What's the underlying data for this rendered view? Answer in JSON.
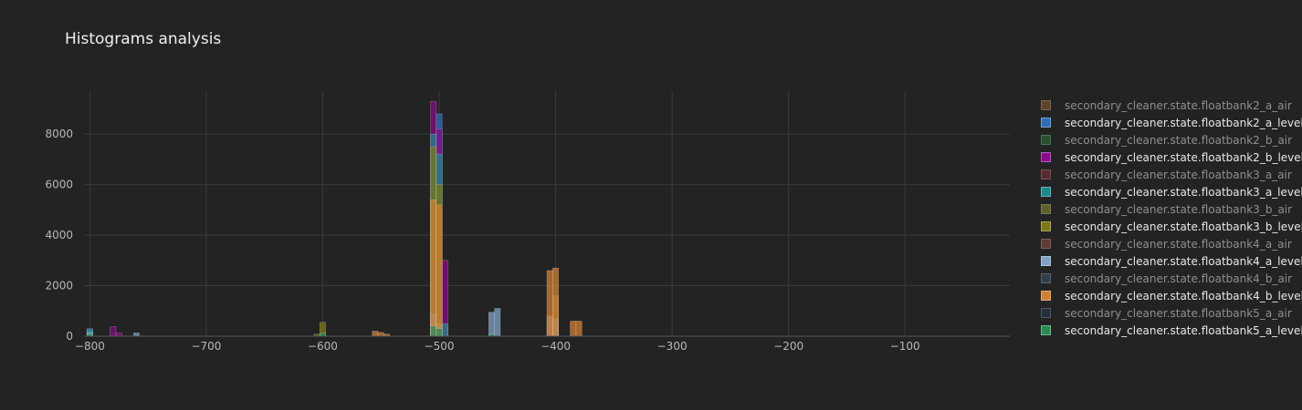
{
  "chart_data": {
    "type": "bar",
    "title": "Histograms analysis",
    "xlabel": "",
    "ylabel": "",
    "xlim": [
      -805,
      -10
    ],
    "ylim": [
      0,
      9700
    ],
    "grid": true,
    "barmode": "overlay",
    "legend_position": "right",
    "x_ticks": [
      -800,
      -700,
      -600,
      -500,
      -400,
      -300,
      -200,
      -100
    ],
    "x_tick_labels": [
      "−800",
      "−700",
      "−600",
      "−500",
      "−400",
      "−300",
      "−200",
      "−100"
    ],
    "y_ticks": [
      0,
      2000,
      4000,
      6000,
      8000
    ],
    "y_tick_labels": [
      "0",
      "2000",
      "4000",
      "6000",
      "8000"
    ],
    "bin_width": 5,
    "series": [
      {
        "name": "secondary_cleaner.state.floatbank2_a_air",
        "color": "#8a5a2e",
        "visible": false,
        "bins": [
          [
            -505,
            80
          ],
          [
            -500,
            60
          ],
          [
            -400,
            40
          ]
        ]
      },
      {
        "name": "secondary_cleaner.state.floatbank2_a_level",
        "color": "#2f6db3",
        "visible": true,
        "bins": [
          [
            -800,
            300
          ],
          [
            -500,
            8800
          ],
          [
            -495,
            400
          ],
          [
            -455,
            60
          ],
          [
            -405,
            40
          ]
        ]
      },
      {
        "name": "secondary_cleaner.state.floatbank2_b_air",
        "color": "#2a6e3a",
        "visible": false,
        "bins": [
          [
            -505,
            60
          ],
          [
            -500,
            40
          ]
        ]
      },
      {
        "name": "secondary_cleaner.state.floatbank2_b_level",
        "color": "#8b0a8b",
        "visible": true,
        "bins": [
          [
            -780,
            380
          ],
          [
            -775,
            120
          ],
          [
            -505,
            9300
          ],
          [
            -500,
            8200
          ],
          [
            -495,
            3000
          ]
        ]
      },
      {
        "name": "secondary_cleaner.state.floatbank3_a_air",
        "color": "#7a2e3a",
        "visible": false,
        "bins": [
          [
            -505,
            50
          ],
          [
            -400,
            30
          ]
        ]
      },
      {
        "name": "secondary_cleaner.state.floatbank3_a_level",
        "color": "#1a8a8a",
        "visible": true,
        "bins": [
          [
            -800,
            250
          ],
          [
            -505,
            8000
          ],
          [
            -500,
            7200
          ],
          [
            -495,
            500
          ]
        ]
      },
      {
        "name": "secondary_cleaner.state.floatbank3_b_air",
        "color": "#8a8a30",
        "visible": false,
        "bins": [
          [
            -600,
            80
          ],
          [
            -505,
            60
          ]
        ]
      },
      {
        "name": "secondary_cleaner.state.floatbank3_b_level",
        "color": "#7a7a10",
        "visible": true,
        "bins": [
          [
            -600,
            550
          ],
          [
            -605,
            80
          ],
          [
            -505,
            7500
          ],
          [
            -500,
            6000
          ],
          [
            -400,
            1600
          ]
        ]
      },
      {
        "name": "secondary_cleaner.state.floatbank4_a_air",
        "color": "#8a4a44",
        "visible": false,
        "bins": [
          [
            -455,
            60
          ],
          [
            -450,
            50
          ]
        ]
      },
      {
        "name": "secondary_cleaner.state.floatbank4_a_level",
        "color": "#7fa3c7",
        "visible": true,
        "bins": [
          [
            -800,
            150
          ],
          [
            -760,
            130
          ],
          [
            -505,
            900
          ],
          [
            -500,
            500
          ],
          [
            -455,
            950
          ],
          [
            -450,
            1100
          ],
          [
            -405,
            800
          ],
          [
            -400,
            700
          ]
        ]
      },
      {
        "name": "secondary_cleaner.state.floatbank4_b_air",
        "color": "#3c5060",
        "visible": false,
        "bins": [
          [
            -505,
            40
          ]
        ]
      },
      {
        "name": "secondary_cleaner.state.floatbank4_b_level",
        "color": "#d47f30",
        "visible": true,
        "bins": [
          [
            -555,
            200
          ],
          [
            -550,
            150
          ],
          [
            -545,
            80
          ],
          [
            -505,
            5400
          ],
          [
            -500,
            5200
          ],
          [
            -405,
            2600
          ],
          [
            -400,
            2700
          ],
          [
            -385,
            600
          ],
          [
            -380,
            600
          ]
        ]
      },
      {
        "name": "secondary_cleaner.state.floatbank5_a_air",
        "color": "#26384c",
        "visible": false,
        "bins": [
          [
            -505,
            40
          ]
        ]
      },
      {
        "name": "secondary_cleaner.state.floatbank5_a_level",
        "color": "#2a8a55",
        "visible": true,
        "bins": [
          [
            -800,
            100
          ],
          [
            -600,
            120
          ],
          [
            -505,
            400
          ],
          [
            -500,
            300
          ],
          [
            -455,
            80
          ]
        ]
      }
    ]
  }
}
